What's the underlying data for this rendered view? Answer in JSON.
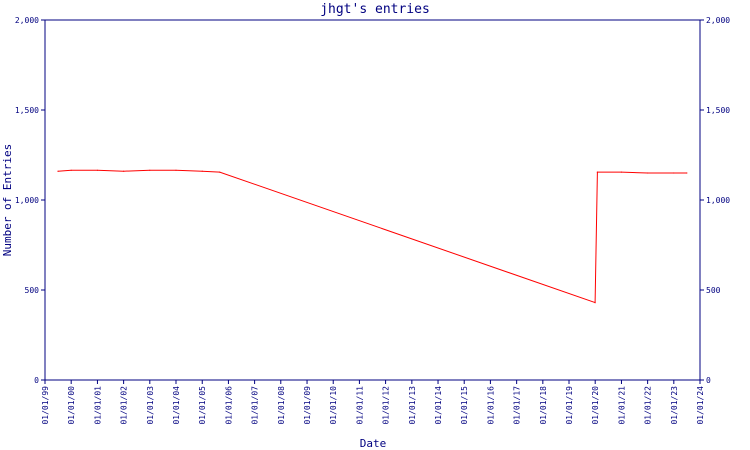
{
  "colors": {
    "axis": "#000080",
    "series": "#ff0000",
    "background": "#ffffff"
  },
  "chart_data": {
    "type": "line",
    "title": "jhgt's entries",
    "xlabel": "Date",
    "ylabel": "Number of Entries",
    "ylim": [
      0,
      2000
    ],
    "y_ticks": [
      0,
      500,
      1000,
      1500,
      2000
    ],
    "y_tick_labels": [
      "0",
      "500",
      "1,000",
      "1,500",
      "2,000"
    ],
    "x_tick_labels": [
      "01/01/99",
      "01/01/00",
      "01/01/01",
      "01/01/02",
      "01/01/03",
      "01/01/04",
      "01/01/05",
      "01/01/06",
      "01/01/07",
      "01/01/08",
      "01/01/09",
      "01/01/10",
      "01/01/11",
      "01/01/12",
      "01/01/13",
      "01/01/14",
      "01/01/15",
      "01/01/16",
      "01/01/17",
      "01/01/18",
      "01/01/19",
      "01/01/20",
      "01/01/21",
      "01/01/22",
      "01/01/23",
      "01/01/24"
    ],
    "xlim": [
      "1999-01-01",
      "2024-01-01"
    ],
    "grid": false,
    "right_axis": true,
    "series": [
      {
        "x": [
          "1999-07-01",
          "2000-01-01",
          "2001-01-01",
          "2002-01-01",
          "2003-01-01",
          "2004-01-01",
          "2005-01-01",
          "2005-09-01",
          "2019-12-30",
          "2020-02-01",
          "2021-01-01",
          "2022-01-01",
          "2023-01-01",
          "2023-07-01"
        ],
        "values": [
          1160,
          1165,
          1165,
          1160,
          1165,
          1165,
          1160,
          1155,
          430,
          1155,
          1155,
          1150,
          1150,
          1150
        ]
      }
    ]
  }
}
